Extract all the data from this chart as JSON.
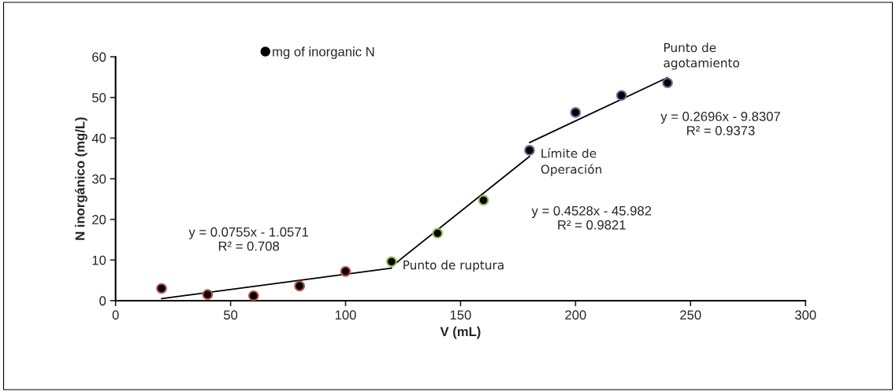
{
  "chart_data": {
    "type": "scatter",
    "xlabel": "V (mL)",
    "ylabel": "N inorgánico (mg/L)",
    "xlim": [
      0,
      300
    ],
    "xticks": [
      0,
      50,
      100,
      150,
      200,
      250,
      300
    ],
    "ylim": [
      0,
      60
    ],
    "yticks": [
      0,
      10,
      20,
      30,
      40,
      50,
      60
    ],
    "grid": false,
    "legend": "top left",
    "marker": "circle",
    "series": [
      {
        "name": "mg of inorganic N",
        "color": "#000000",
        "x": [
          20,
          40,
          60,
          80,
          100,
          120,
          140,
          160,
          180,
          200,
          220,
          240
        ],
        "values": [
          3.0,
          1.5,
          1.2,
          3.6,
          7.2,
          9.6,
          16.6,
          24.7,
          37.0,
          46.3,
          50.5,
          53.6
        ],
        "colors": [
          "#c0504d",
          "#c0504d",
          "#c0504d",
          "#c0504d",
          "#c0504d",
          "#9bbb59",
          "#9bbb59",
          "#9bbb59",
          "#8064a2",
          "#8064a2",
          "#8064a2",
          "#8064a2"
        ]
      },
      {
        "type": "line",
        "color": "#000000",
        "marker": "none",
        "line_style": "solid",
        "x": [
          20,
          120
        ],
        "values": [
          0.5,
          8.0
        ]
      },
      {
        "type": "line",
        "color": "#000000",
        "marker": "none",
        "line_style": "solid",
        "x": [
          120,
          180
        ],
        "values": [
          8.4,
          35.5
        ]
      },
      {
        "type": "line",
        "color": "#000000",
        "marker": "none",
        "line_style": "solid",
        "x": [
          180,
          240
        ],
        "values": [
          38.9,
          54.9
        ]
      }
    ],
    "annotations": [
      "y = 0.0755x - 1.0571\nR² = 0.708",
      "y = 0.4528x - 45.982\nR² = 0.9821",
      "y = 0.2696x - 9.8307\nR² = 0.9373",
      {
        "text": "Punto de ruptura",
        "x": 120,
        "y": 9.6
      },
      {
        "text": "Límite de\nOperación",
        "x": 180,
        "y": 37.0
      },
      {
        "text": "Punto de\nagotamiento",
        "x": 240,
        "y": 53.6
      }
    ]
  }
}
